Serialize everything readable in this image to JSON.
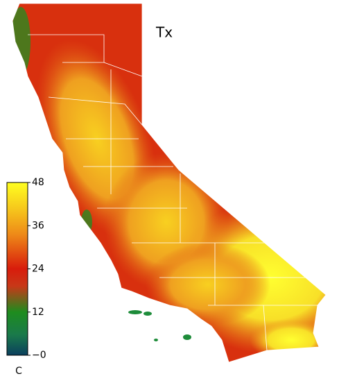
{
  "title": "Tx",
  "colorbar": {
    "lim": [
      0,
      48
    ],
    "ticks": [
      48,
      36,
      24,
      12,
      {
        "value": 0,
        "label": "−0"
      }
    ],
    "unit": "C"
  }
}
